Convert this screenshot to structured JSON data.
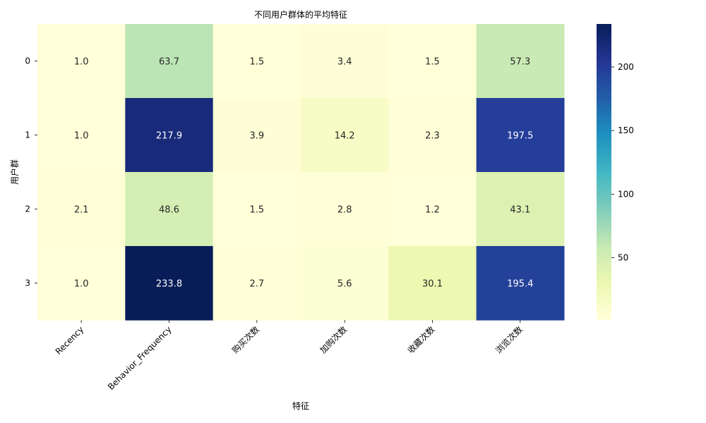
{
  "chart_data": {
    "type": "heatmap",
    "title": "不同用户群体的平均特征",
    "xlabel": "特征",
    "ylabel": "用户群",
    "x_categories": [
      "Recency",
      "Behavior_Frequency",
      "购买次数",
      "加购次数",
      "收藏次数",
      "浏览次数"
    ],
    "y_categories": [
      "0",
      "1",
      "2",
      "3"
    ],
    "values": [
      [
        1.0,
        63.7,
        1.5,
        3.4,
        1.5,
        57.3
      ],
      [
        1.0,
        217.9,
        3.9,
        14.2,
        2.3,
        197.5
      ],
      [
        2.1,
        48.6,
        1.5,
        2.8,
        1.2,
        43.1
      ],
      [
        1.0,
        233.8,
        2.7,
        5.6,
        30.1,
        195.4
      ]
    ],
    "colormap": "YlGnBu",
    "colorbar": {
      "range": [
        1.0,
        233.8
      ],
      "ticks": [
        50,
        100,
        150,
        200
      ]
    },
    "annotations": true,
    "grid": false
  }
}
